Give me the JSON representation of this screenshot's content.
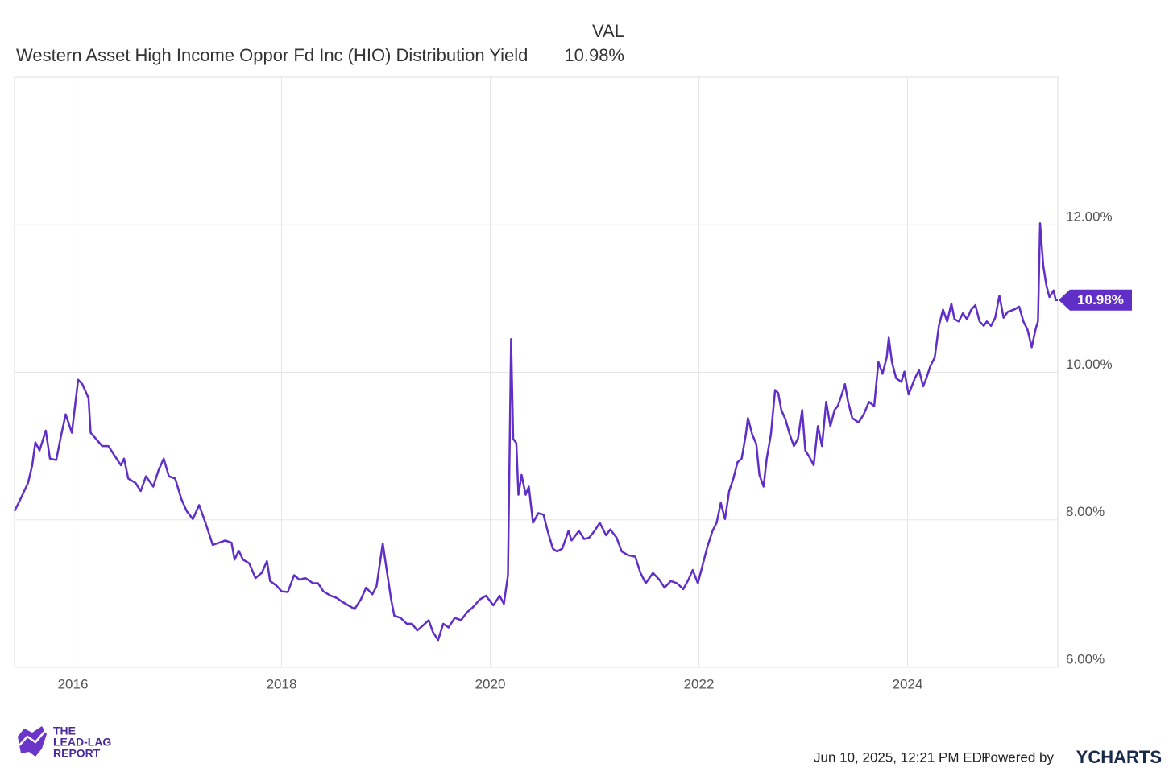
{
  "chart_data": {
    "type": "line",
    "header": "VAL",
    "title": "Western Asset High Income Oppor Fd Inc (HIO) Distribution Yield",
    "current": {
      "value": 10.98,
      "label": "10.98%"
    },
    "x": [
      2015.44,
      2015.49,
      2015.57,
      2015.61,
      2015.64,
      2015.68,
      2015.74,
      2015.78,
      2015.84,
      2015.88,
      2015.93,
      2015.99,
      2016.05,
      2016.09,
      2016.15,
      2016.17,
      2016.22,
      2016.28,
      2016.34,
      2016.39,
      2016.46,
      2016.49,
      2016.53,
      2016.6,
      2016.65,
      2016.7,
      2016.77,
      2016.82,
      2016.87,
      2016.92,
      2016.98,
      2017.04,
      2017.09,
      2017.15,
      2017.21,
      2017.27,
      2017.31,
      2017.34,
      2017.4,
      2017.46,
      2017.52,
      2017.55,
      2017.59,
      2017.63,
      2017.69,
      2017.75,
      2017.81,
      2017.86,
      2017.89,
      2017.95,
      2018.0,
      2018.06,
      2018.12,
      2018.17,
      2018.23,
      2018.3,
      2018.35,
      2018.4,
      2018.47,
      2018.53,
      2018.58,
      2018.64,
      2018.7,
      2018.76,
      2018.81,
      2018.87,
      2018.91,
      2018.97,
      2019.01,
      2019.05,
      2019.08,
      2019.14,
      2019.2,
      2019.25,
      2019.3,
      2019.35,
      2019.41,
      2019.45,
      2019.5,
      2019.55,
      2019.6,
      2019.66,
      2019.72,
      2019.78,
      2019.83,
      2019.9,
      2019.96,
      2020.03,
      2020.09,
      2020.13,
      2020.17,
      2020.2,
      2020.22,
      2020.25,
      2020.27,
      2020.3,
      2020.34,
      2020.37,
      2020.41,
      2020.46,
      2020.51,
      2020.55,
      2020.6,
      2020.64,
      2020.69,
      2020.75,
      2020.78,
      2020.85,
      2020.9,
      2020.95,
      2021.0,
      2021.05,
      2021.11,
      2021.15,
      2021.21,
      2021.26,
      2021.32,
      2021.39,
      2021.44,
      2021.49,
      2021.56,
      2021.62,
      2021.67,
      2021.73,
      2021.79,
      2021.85,
      2021.9,
      2021.94,
      2021.99,
      2022.04,
      2022.08,
      2022.13,
      2022.17,
      2022.21,
      2022.25,
      2022.29,
      2022.33,
      2022.37,
      2022.41,
      2022.45,
      2022.47,
      2022.51,
      2022.55,
      2022.58,
      2022.62,
      2022.65,
      2022.69,
      2022.73,
      2022.76,
      2022.79,
      2022.83,
      2022.87,
      2022.91,
      2022.95,
      2022.99,
      2023.02,
      2023.06,
      2023.1,
      2023.14,
      2023.18,
      2023.22,
      2023.26,
      2023.3,
      2023.33,
      2023.37,
      2023.4,
      2023.43,
      2023.47,
      2023.53,
      2023.58,
      2023.63,
      2023.68,
      2023.72,
      2023.76,
      2023.8,
      2023.82,
      2023.85,
      2023.89,
      2023.94,
      2023.97,
      2024.01,
      2024.07,
      2024.11,
      2024.15,
      2024.18,
      2024.22,
      2024.26,
      2024.3,
      2024.34,
      2024.38,
      2024.42,
      2024.45,
      2024.49,
      2024.53,
      2024.57,
      2024.61,
      2024.65,
      2024.69,
      2024.73,
      2024.76,
      2024.8,
      2024.84,
      2024.88,
      2024.92,
      2024.96,
      2025.02,
      2025.07,
      2025.11,
      2025.15,
      2025.19,
      2025.23,
      2025.25,
      2025.27,
      2025.3,
      2025.33,
      2025.36,
      2025.4,
      2025.42,
      2025.44
    ],
    "series": [
      {
        "name": "Western Asset High Income Oppor Fd Inc (HIO) Distribution Yield",
        "color": "#5f2fc8",
        "values": [
          8.12,
          8.26,
          8.5,
          8.74,
          9.05,
          8.94,
          9.21,
          8.83,
          8.81,
          9.1,
          9.43,
          9.18,
          9.9,
          9.84,
          9.65,
          9.18,
          9.1,
          9.0,
          9.0,
          8.89,
          8.74,
          8.83,
          8.56,
          8.5,
          8.39,
          8.59,
          8.45,
          8.67,
          8.83,
          8.59,
          8.56,
          8.28,
          8.12,
          8.01,
          8.2,
          7.96,
          7.79,
          7.66,
          7.69,
          7.72,
          7.69,
          7.46,
          7.58,
          7.46,
          7.41,
          7.21,
          7.28,
          7.44,
          7.17,
          7.11,
          7.03,
          7.02,
          7.25,
          7.19,
          7.21,
          7.14,
          7.14,
          7.03,
          6.97,
          6.94,
          6.89,
          6.84,
          6.79,
          6.92,
          7.08,
          6.99,
          7.1,
          7.68,
          7.3,
          6.92,
          6.7,
          6.67,
          6.59,
          6.59,
          6.5,
          6.56,
          6.64,
          6.48,
          6.37,
          6.59,
          6.54,
          6.67,
          6.64,
          6.75,
          6.81,
          6.92,
          6.97,
          6.84,
          6.97,
          6.86,
          7.25,
          10.45,
          9.1,
          9.04,
          8.34,
          8.61,
          8.34,
          8.45,
          7.96,
          8.09,
          8.07,
          7.85,
          7.61,
          7.57,
          7.61,
          7.85,
          7.72,
          7.85,
          7.74,
          7.76,
          7.85,
          7.96,
          7.79,
          7.87,
          7.76,
          7.57,
          7.52,
          7.5,
          7.28,
          7.14,
          7.28,
          7.19,
          7.08,
          7.17,
          7.14,
          7.06,
          7.19,
          7.32,
          7.14,
          7.41,
          7.63,
          7.85,
          7.96,
          8.23,
          8.01,
          8.39,
          8.56,
          8.78,
          8.83,
          9.16,
          9.38,
          9.16,
          9.03,
          8.61,
          8.45,
          8.83,
          9.16,
          9.76,
          9.72,
          9.49,
          9.36,
          9.16,
          9.0,
          9.1,
          9.49,
          8.94,
          8.85,
          8.74,
          9.27,
          9.0,
          9.6,
          9.27,
          9.49,
          9.54,
          9.7,
          9.84,
          9.6,
          9.38,
          9.32,
          9.43,
          9.6,
          9.54,
          10.14,
          9.98,
          10.2,
          10.47,
          10.14,
          9.92,
          9.87,
          10.01,
          9.7,
          9.92,
          10.03,
          9.81,
          9.92,
          10.09,
          10.2,
          10.63,
          10.85,
          10.69,
          10.93,
          10.72,
          10.69,
          10.8,
          10.72,
          10.85,
          10.91,
          10.69,
          10.63,
          10.69,
          10.63,
          10.74,
          11.04,
          10.74,
          10.82,
          10.85,
          10.89,
          10.69,
          10.58,
          10.34,
          10.6,
          10.69,
          12.02,
          11.45,
          11.18,
          11.02,
          11.11,
          10.98,
          10.98
        ]
      }
    ],
    "xlim": [
      2015.44,
      2025.44
    ],
    "xticks": [
      2016,
      2018,
      2020,
      2022,
      2024
    ],
    "ylim": [
      6,
      14
    ],
    "yticks": [
      {
        "value": 6,
        "label": "6.00%"
      },
      {
        "value": 8,
        "label": "8.00%"
      },
      {
        "value": 10,
        "label": "10.00%"
      },
      {
        "value": 12,
        "label": "12.00%"
      }
    ],
    "grid": true,
    "logo": [
      "THE",
      "LEAD-LAG",
      "REPORT"
    ],
    "timestamp": "Jun 10, 2025, 12:21 PM EDT",
    "powered_by": "Powered by",
    "brand": "YCHARTS"
  }
}
